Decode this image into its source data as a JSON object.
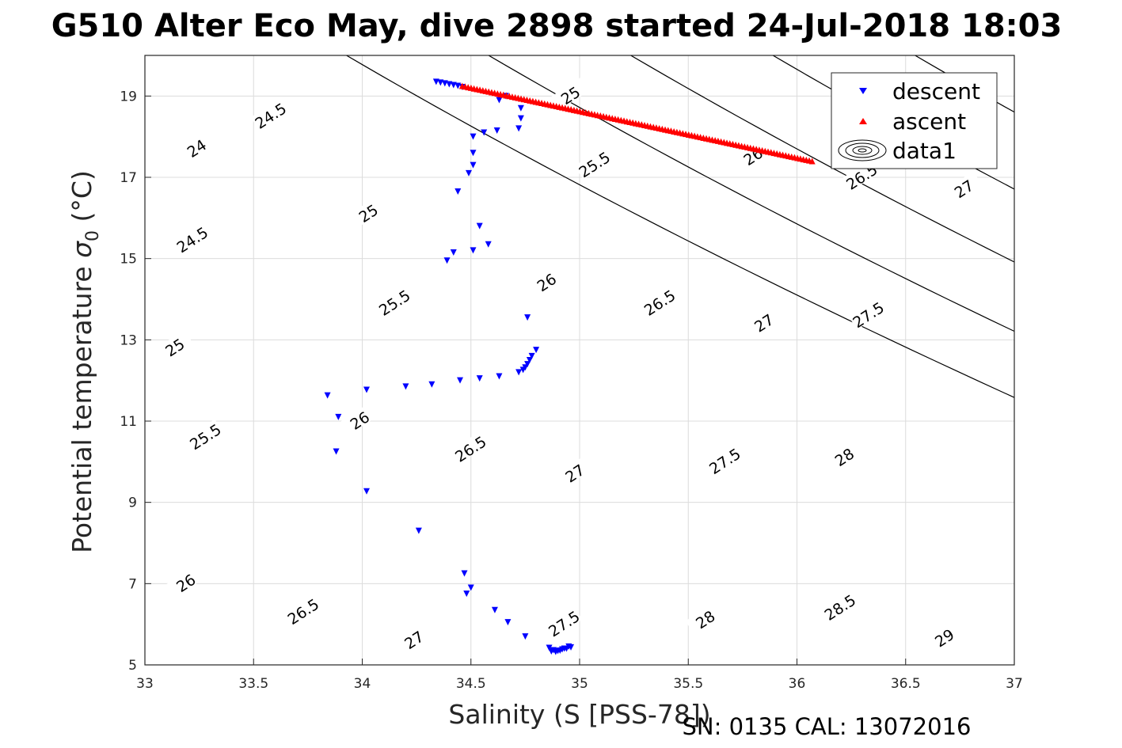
{
  "chart_data": {
    "type": "scatter",
    "title": "G510 Alter Eco May, dive 2898 started 24-Jul-2018 18:03",
    "xlabel": "Salinity (S [PSS-78])",
    "ylabel_main": "Potential temperature ",
    "ylabel_symbol": "σ",
    "ylabel_subscript": "0",
    "ylabel_unit": " (°C)",
    "footer": "SN: 0135  CAL: 13072016",
    "xlim": [
      33,
      37
    ],
    "ylim": [
      5,
      20
    ],
    "x_ticks": [
      "33",
      "33.5",
      "34",
      "34.5",
      "35",
      "35.5",
      "36",
      "36.5",
      "37"
    ],
    "y_ticks": [
      "5",
      "7",
      "9",
      "11",
      "13",
      "15",
      "17",
      "19"
    ],
    "grid": true,
    "legend": {
      "placement": "top-right",
      "entries": [
        {
          "name": "descent",
          "marker": "triangle-down",
          "color": "#0000ff"
        },
        {
          "name": "ascent",
          "marker": "triangle-up",
          "color": "#ff0000"
        },
        {
          "name": "data1",
          "marker": "contour",
          "color": "#000000"
        }
      ]
    },
    "contours": {
      "levels": [
        24,
        24.5,
        25,
        25.5,
        26,
        26.5,
        27,
        27.5,
        28,
        28.5,
        29
      ],
      "labels": [
        {
          "text": "24",
          "x": 33.24,
          "y": 17.7
        },
        {
          "text": "24.5",
          "x": 33.58,
          "y": 18.5
        },
        {
          "text": "25",
          "x": 34.96,
          "y": 19.0
        },
        {
          "text": "24.5",
          "x": 33.22,
          "y": 15.45
        },
        {
          "text": "25",
          "x": 34.03,
          "y": 16.1
        },
        {
          "text": "25.5",
          "x": 35.07,
          "y": 17.3
        },
        {
          "text": "26",
          "x": 35.8,
          "y": 17.5
        },
        {
          "text": "26.5",
          "x": 36.3,
          "y": 17.0
        },
        {
          "text": "27",
          "x": 36.77,
          "y": 16.7
        },
        {
          "text": "25",
          "x": 33.14,
          "y": 12.8
        },
        {
          "text": "25.5",
          "x": 34.15,
          "y": 13.9
        },
        {
          "text": "26",
          "x": 34.85,
          "y": 14.4
        },
        {
          "text": "26.5",
          "x": 35.37,
          "y": 13.9
        },
        {
          "text": "27",
          "x": 35.85,
          "y": 13.4
        },
        {
          "text": "27.5",
          "x": 36.33,
          "y": 13.6
        },
        {
          "text": "25.5",
          "x": 33.28,
          "y": 10.6
        },
        {
          "text": "26",
          "x": 33.99,
          "y": 11.0
        },
        {
          "text": "26.5",
          "x": 34.5,
          "y": 10.3
        },
        {
          "text": "27",
          "x": 34.98,
          "y": 9.7
        },
        {
          "text": "27.5",
          "x": 35.67,
          "y": 10.0
        },
        {
          "text": "28",
          "x": 36.22,
          "y": 10.1
        },
        {
          "text": "26",
          "x": 33.19,
          "y": 7.0
        },
        {
          "text": "26.5",
          "x": 33.73,
          "y": 6.3
        },
        {
          "text": "27",
          "x": 34.24,
          "y": 5.6
        },
        {
          "text": "27.5",
          "x": 34.93,
          "y": 6.0
        },
        {
          "text": "28",
          "x": 35.58,
          "y": 6.1
        },
        {
          "text": "28.5",
          "x": 36.2,
          "y": 6.4
        },
        {
          "text": "29",
          "x": 36.68,
          "y": 5.65
        }
      ]
    },
    "series": [
      {
        "name": "descent",
        "color": "#0000ff",
        "marker": "triangle-down",
        "x": [
          34.34,
          34.36,
          34.38,
          34.4,
          34.42,
          34.44,
          34.46,
          34.63,
          34.66,
          34.73,
          34.73,
          34.72,
          34.51,
          34.56,
          34.62,
          34.51,
          34.51,
          34.49,
          34.44,
          34.54,
          34.58,
          34.51,
          34.42,
          34.39,
          34.76,
          34.8,
          34.78,
          34.77,
          34.76,
          34.75,
          34.74,
          34.72,
          34.63,
          34.54,
          34.45,
          34.32,
          34.2,
          34.02,
          33.84,
          33.89,
          33.88,
          34.02,
          34.26,
          34.47,
          34.48,
          34.5,
          34.61,
          34.67,
          34.75,
          34.86,
          34.88,
          34.9,
          34.92,
          34.94,
          34.96,
          34.87,
          34.89,
          34.91,
          34.93,
          34.95
        ],
        "y": [
          19.35,
          19.33,
          19.31,
          19.29,
          19.27,
          19.25,
          19.22,
          18.9,
          19.0,
          18.7,
          18.45,
          18.2,
          18.0,
          18.1,
          18.15,
          17.6,
          17.3,
          17.1,
          16.65,
          15.8,
          15.35,
          15.2,
          15.15,
          14.95,
          13.55,
          12.75,
          12.6,
          12.5,
          12.4,
          12.32,
          12.26,
          12.2,
          12.1,
          12.05,
          12.0,
          11.9,
          11.85,
          11.77,
          11.63,
          11.1,
          10.25,
          9.27,
          8.3,
          7.25,
          6.75,
          6.9,
          6.35,
          6.05,
          5.7,
          5.42,
          5.36,
          5.34,
          5.38,
          5.4,
          5.43,
          5.33,
          5.32,
          5.35,
          5.4,
          5.45
        ]
      },
      {
        "name": "ascent",
        "color": "#ff0000",
        "marker": "triangle-up",
        "x_start": 34.46,
        "y_start": 19.25,
        "x_end": 36.07,
        "y_end": 17.4,
        "count": 120
      }
    ]
  }
}
